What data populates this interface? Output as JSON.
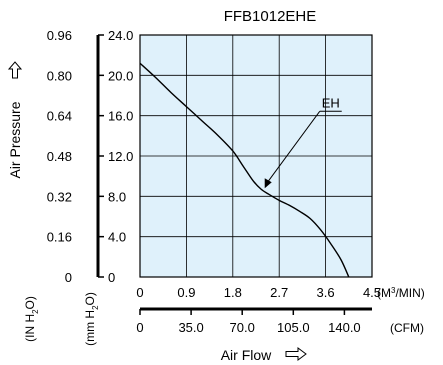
{
  "chart_data": {
    "type": "line",
    "title": "FFB1012EHE",
    "ylabel": "Air Pressure",
    "xlabel": "Air Flow",
    "background_color": "#dff1fb",
    "grid": true,
    "x_primary": {
      "unit_prefix": "(M",
      "unit_sup": "3",
      "unit_suffix": "/MIN)",
      "range": [
        0,
        4.5
      ],
      "tick_values": [
        0,
        0.9,
        1.8,
        2.7,
        3.6,
        4.5
      ],
      "tick_labels": [
        "0",
        "0.9",
        "1.8",
        "2.7",
        "3.6",
        "4.5"
      ]
    },
    "x_secondary": {
      "unit": "(CFM)",
      "range": [
        0,
        158.9
      ],
      "tick_values": [
        0,
        35.0,
        70.0,
        105.0,
        140.0
      ],
      "tick_labels": [
        "0",
        "35.0",
        "70.0",
        "105.0",
        "140.0"
      ]
    },
    "y_primary": {
      "unit_prefix": "(mm H",
      "unit_sub": "2",
      "unit_suffix": "O)",
      "range": [
        0,
        24.0
      ],
      "tick_values": [
        0,
        4.0,
        8.0,
        12.0,
        16.0,
        20.0,
        24.0
      ],
      "tick_labels": [
        "0",
        "4.0",
        "8.0",
        "12.0",
        "16.0",
        "20.0",
        "24.0"
      ]
    },
    "y_secondary": {
      "unit_prefix": "(IN H",
      "unit_sub": "2",
      "unit_suffix": "O)",
      "range": [
        0,
        0.96
      ],
      "tick_values": [
        0,
        0.16,
        0.32,
        0.48,
        0.64,
        0.8,
        0.96
      ],
      "tick_labels": [
        "0",
        "0.16",
        "0.32",
        "0.48",
        "0.64",
        "0.80",
        "0.96"
      ]
    },
    "series": [
      {
        "name": "EH",
        "x": [
          0,
          0.3,
          0.6,
          0.9,
          1.2,
          1.5,
          1.8,
          2.0,
          2.2,
          2.35,
          2.5,
          2.7,
          2.9,
          3.1,
          3.3,
          3.5,
          3.7,
          3.9,
          4.05
        ],
        "y": [
          21.2,
          19.8,
          18.3,
          16.9,
          15.5,
          14.1,
          12.5,
          11.0,
          9.5,
          8.7,
          8.2,
          7.6,
          7.1,
          6.5,
          5.8,
          4.7,
          3.3,
          1.7,
          0
        ]
      }
    ],
    "annotations": [
      {
        "text": "EH",
        "series": "EH",
        "x": 2.4,
        "y": 8.7
      }
    ]
  }
}
